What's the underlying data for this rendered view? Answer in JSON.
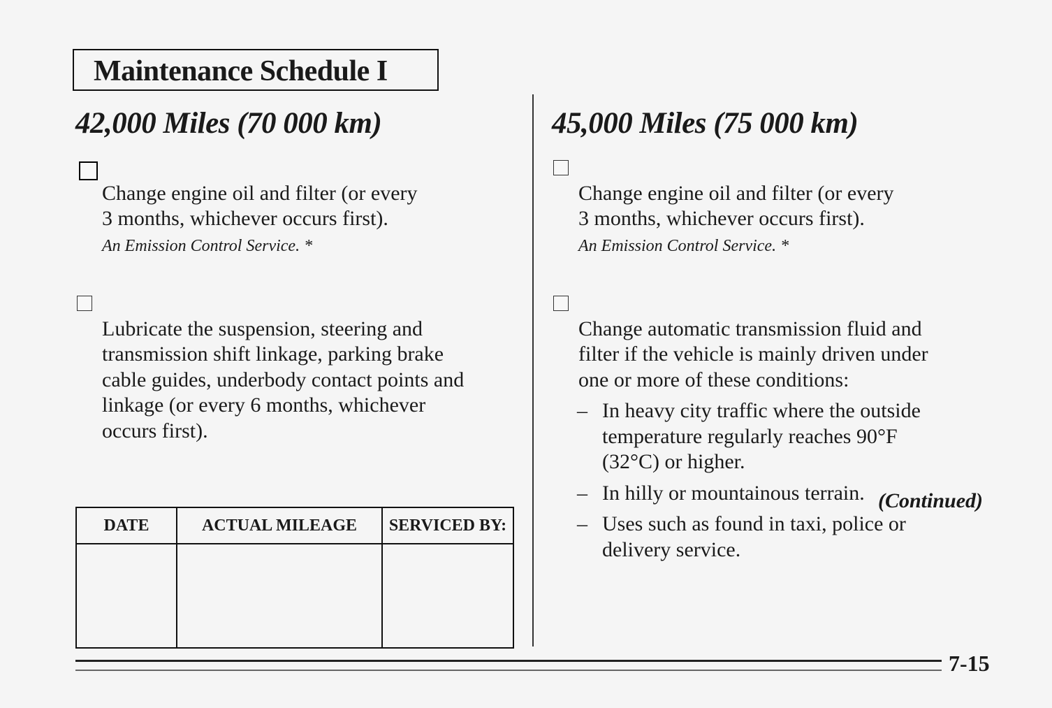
{
  "title": "Maintenance Schedule I",
  "left": {
    "heading": "42,000 Miles (70 000 km)",
    "items": [
      {
        "text": "Change engine oil and filter (or every\n3 months, whichever occurs first).",
        "note": "An Emission Control Service. *"
      },
      {
        "text": "Lubricate the suspension, steering and\ntransmission shift linkage, parking brake\ncable guides, underbody contact points and\nlinkage (or every 6 months, whichever\noccurs first)."
      }
    ]
  },
  "right": {
    "heading": "45,000 Miles (75 000 km)",
    "items": [
      {
        "text": "Change engine oil and filter (or every\n3 months, whichever occurs first).",
        "note": "An Emission Control Service. *"
      },
      {
        "text": "Change automatic transmission fluid and\nfilter if the vehicle is mainly driven under\none or more of these conditions:"
      }
    ],
    "conditions": [
      "In heavy city traffic where the outside\ntemperature regularly reaches 90°F\n(32°C) or higher.",
      "In hilly or mountainous terrain.",
      "Uses such as found in taxi, police or\ndelivery service."
    ],
    "continued": "(Continued)"
  },
  "log_table": {
    "headers": [
      "DATE",
      "ACTUAL MILEAGE",
      "SERVICED BY:"
    ]
  },
  "page_number": "7-15"
}
